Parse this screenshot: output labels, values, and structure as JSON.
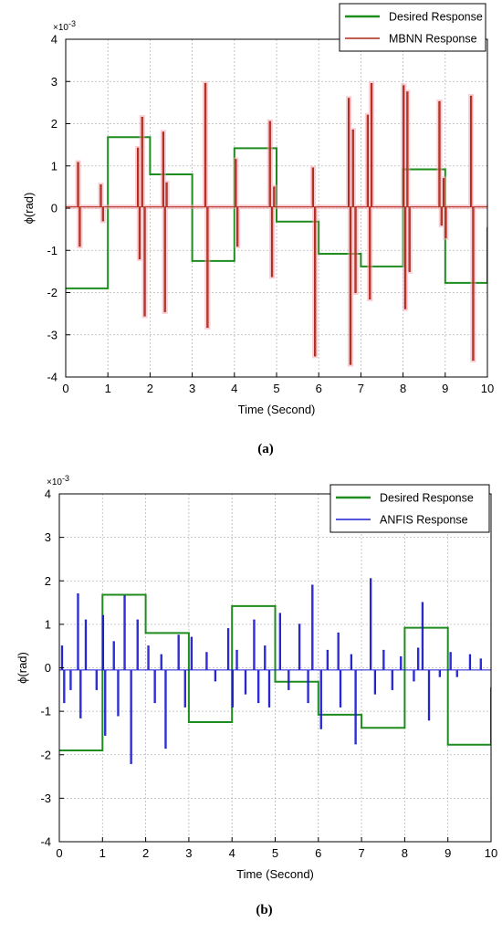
{
  "chart_data": [
    {
      "type": "line",
      "panel_label": "(a)",
      "xlabel": "Time (Second)",
      "ylabel": "ϕ(rad)",
      "y_multiplier": "×10",
      "y_multiplier_exp": "-3",
      "xlim": [
        0,
        10
      ],
      "ylim": [
        -4,
        4
      ],
      "xticks": [
        0,
        1,
        2,
        3,
        4,
        5,
        6,
        7,
        8,
        9,
        10
      ],
      "yticks": [
        -4,
        -3,
        -2,
        -1,
        0,
        1,
        2,
        3,
        4
      ],
      "grid": true,
      "legend_position": "top-right",
      "series": [
        {
          "name": "Desired Response",
          "kind": "step",
          "color": "#1e8c1e",
          "x": [
            0,
            1,
            2,
            3,
            4,
            5,
            6,
            7,
            8,
            9,
            10
          ],
          "values": [
            -1.9,
            1.68,
            0.8,
            -1.25,
            1.42,
            -0.32,
            -1.08,
            -1.38,
            0.92,
            -1.77,
            -0.45
          ]
        },
        {
          "name": "MBNN Response",
          "kind": "spikes",
          "color": "#b0281a",
          "baseline": 0.03,
          "spikes": [
            {
              "t": 0.28,
              "v": 1.08
            },
            {
              "t": 0.32,
              "v": -0.9
            },
            {
              "t": 0.82,
              "v": 0.55
            },
            {
              "t": 0.87,
              "v": -0.3
            },
            {
              "t": 1.7,
              "v": 1.42
            },
            {
              "t": 1.74,
              "v": -1.2
            },
            {
              "t": 1.8,
              "v": 2.15
            },
            {
              "t": 1.86,
              "v": -2.55
            },
            {
              "t": 2.3,
              "v": 1.8
            },
            {
              "t": 2.34,
              "v": -2.45
            },
            {
              "t": 2.38,
              "v": 0.6
            },
            {
              "t": 3.3,
              "v": 2.95
            },
            {
              "t": 3.35,
              "v": -2.82
            },
            {
              "t": 4.02,
              "v": 1.15
            },
            {
              "t": 4.06,
              "v": -0.9
            },
            {
              "t": 4.83,
              "v": 2.05
            },
            {
              "t": 4.88,
              "v": -1.62
            },
            {
              "t": 4.93,
              "v": 0.5
            },
            {
              "t": 5.85,
              "v": 0.95
            },
            {
              "t": 5.9,
              "v": -3.5
            },
            {
              "t": 6.7,
              "v": 2.6
            },
            {
              "t": 6.74,
              "v": -3.7
            },
            {
              "t": 6.8,
              "v": 1.85
            },
            {
              "t": 6.86,
              "v": -2.0
            },
            {
              "t": 7.15,
              "v": 2.2
            },
            {
              "t": 7.2,
              "v": -2.15
            },
            {
              "t": 7.24,
              "v": 2.95
            },
            {
              "t": 8.0,
              "v": 2.9
            },
            {
              "t": 8.04,
              "v": -2.38
            },
            {
              "t": 8.09,
              "v": 2.75
            },
            {
              "t": 8.14,
              "v": -1.5
            },
            {
              "t": 8.85,
              "v": 2.52
            },
            {
              "t": 8.9,
              "v": -0.4
            },
            {
              "t": 8.95,
              "v": 0.7
            },
            {
              "t": 9.0,
              "v": -0.7
            },
            {
              "t": 9.6,
              "v": 2.65
            },
            {
              "t": 9.65,
              "v": -3.6
            }
          ]
        }
      ]
    },
    {
      "type": "line",
      "panel_label": "(b)",
      "xlabel": "Time (Second)",
      "ylabel": "ϕ(rad)",
      "y_multiplier": "×10",
      "y_multiplier_exp": "-3",
      "xlim": [
        0,
        10
      ],
      "ylim": [
        -4,
        4
      ],
      "xticks": [
        0,
        1,
        2,
        3,
        4,
        5,
        6,
        7,
        8,
        9,
        10
      ],
      "yticks": [
        -4,
        -3,
        -2,
        -1,
        0,
        1,
        2,
        3,
        4
      ],
      "grid": true,
      "legend_position": "top-right",
      "series": [
        {
          "name": "Desired Response",
          "kind": "step",
          "color": "#1e8c1e",
          "x": [
            0,
            1,
            2,
            3,
            4,
            5,
            6,
            7,
            8,
            9,
            10
          ],
          "values": [
            -1.9,
            1.68,
            0.8,
            -1.25,
            1.42,
            -0.32,
            -1.08,
            -1.38,
            0.92,
            -1.77,
            -0.45
          ]
        },
        {
          "name": "ANFIS Response",
          "kind": "spikes",
          "color": "#1b1bd0",
          "baseline": -0.05,
          "spikes": [
            {
              "t": 0.05,
              "v": 0.5
            },
            {
              "t": 0.1,
              "v": -0.8
            },
            {
              "t": 0.25,
              "v": -0.5
            },
            {
              "t": 0.42,
              "v": 1.7
            },
            {
              "t": 0.48,
              "v": -1.15
            },
            {
              "t": 0.6,
              "v": 1.1
            },
            {
              "t": 0.85,
              "v": -0.5
            },
            {
              "t": 1.0,
              "v": 1.2
            },
            {
              "t": 1.05,
              "v": -1.55
            },
            {
              "t": 1.25,
              "v": 0.6
            },
            {
              "t": 1.35,
              "v": -1.1
            },
            {
              "t": 1.5,
              "v": 1.65
            },
            {
              "t": 1.65,
              "v": -2.2
            },
            {
              "t": 1.8,
              "v": 1.1
            },
            {
              "t": 2.05,
              "v": 0.5
            },
            {
              "t": 2.2,
              "v": -0.8
            },
            {
              "t": 2.35,
              "v": 0.3
            },
            {
              "t": 2.45,
              "v": -1.85
            },
            {
              "t": 2.75,
              "v": 0.75
            },
            {
              "t": 2.9,
              "v": -0.9
            },
            {
              "t": 3.05,
              "v": 0.7
            },
            {
              "t": 3.4,
              "v": 0.35
            },
            {
              "t": 3.6,
              "v": -0.3
            },
            {
              "t": 3.9,
              "v": 0.9
            },
            {
              "t": 4.0,
              "v": -0.9
            },
            {
              "t": 4.1,
              "v": 0.4
            },
            {
              "t": 4.3,
              "v": -0.6
            },
            {
              "t": 4.5,
              "v": 1.1
            },
            {
              "t": 4.6,
              "v": -0.8
            },
            {
              "t": 4.75,
              "v": 0.5
            },
            {
              "t": 4.85,
              "v": -0.9
            },
            {
              "t": 5.1,
              "v": 1.25
            },
            {
              "t": 5.3,
              "v": -0.5
            },
            {
              "t": 5.55,
              "v": 1.0
            },
            {
              "t": 5.75,
              "v": -0.8
            },
            {
              "t": 5.85,
              "v": 1.9
            },
            {
              "t": 6.05,
              "v": -1.4
            },
            {
              "t": 6.2,
              "v": 0.4
            },
            {
              "t": 6.45,
              "v": 0.8
            },
            {
              "t": 6.5,
              "v": -0.9
            },
            {
              "t": 6.75,
              "v": 0.3
            },
            {
              "t": 6.85,
              "v": -1.75
            },
            {
              "t": 7.2,
              "v": 2.05
            },
            {
              "t": 7.3,
              "v": -0.6
            },
            {
              "t": 7.5,
              "v": 0.4
            },
            {
              "t": 7.7,
              "v": -0.5
            },
            {
              "t": 7.9,
              "v": 0.25
            },
            {
              "t": 8.2,
              "v": -0.3
            },
            {
              "t": 8.3,
              "v": 0.45
            },
            {
              "t": 8.4,
              "v": 1.5
            },
            {
              "t": 8.55,
              "v": -1.2
            },
            {
              "t": 8.8,
              "v": -0.2
            },
            {
              "t": 9.05,
              "v": 0.35
            },
            {
              "t": 9.2,
              "v": -0.2
            },
            {
              "t": 9.5,
              "v": 0.3
            },
            {
              "t": 9.75,
              "v": 0.2
            }
          ]
        }
      ]
    }
  ]
}
